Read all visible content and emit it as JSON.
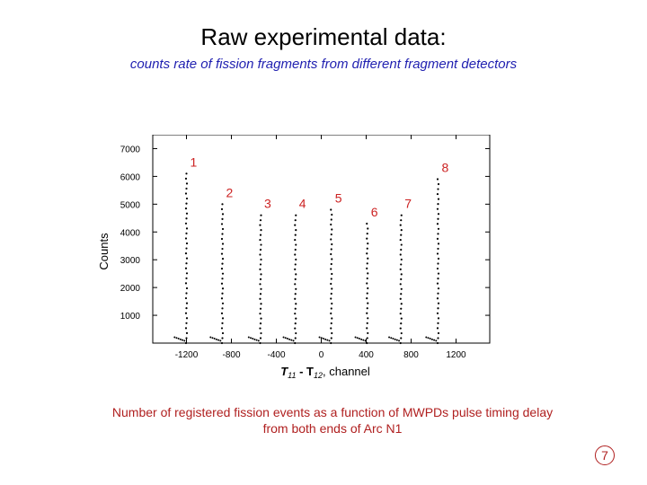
{
  "title": "Raw experimental data:",
  "subtitle": "counts rate of fission fragments from different fragment detectors",
  "caption_line1": "Number of registered fission events as a function of MWPDs pulse timing delay",
  "caption_line2": "from both ends of Arc N1",
  "page_number": "7",
  "colors": {
    "detector_labels": "#cc2222",
    "subtitle": "#1f1fb0",
    "caption": "#b02020"
  },
  "chart_data": {
    "type": "scatter",
    "xlabel_main": "T",
    "xlabel_sub1": "11",
    "xlabel_mid": " - T",
    "xlabel_sub2": "12",
    "xlabel_tail": ", channel",
    "ylabel": "Counts",
    "xlim": [
      -1500,
      1500
    ],
    "ylim": [
      0,
      7500
    ],
    "x_ticks": [
      -1200,
      -800,
      -400,
      0,
      400,
      800,
      1200
    ],
    "y_ticks": [
      1000,
      2000,
      3000,
      4000,
      5000,
      6000,
      7000
    ],
    "peaks": [
      {
        "label": "1",
        "x": -1200,
        "height": 6100
      },
      {
        "label": "2",
        "x": -880,
        "height": 5000
      },
      {
        "label": "3",
        "x": -540,
        "height": 4600
      },
      {
        "label": "4",
        "x": -230,
        "height": 4600
      },
      {
        "label": "5",
        "x": 90,
        "height": 4800
      },
      {
        "label": "6",
        "x": 410,
        "height": 4300
      },
      {
        "label": "7",
        "x": 710,
        "height": 4600
      },
      {
        "label": "8",
        "x": 1040,
        "height": 5900
      }
    ]
  }
}
